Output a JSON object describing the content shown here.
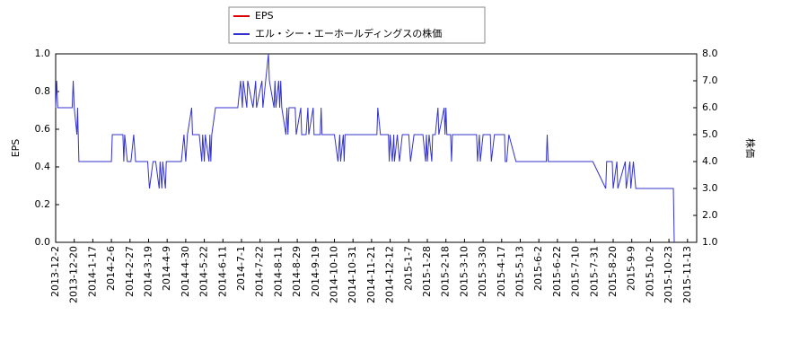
{
  "chart_data": {
    "type": "line",
    "ylabel": "EPS",
    "y2label": "株価",
    "ylim": [
      0,
      1
    ],
    "yticks": [
      {
        "value": 0,
        "label": "0.0"
      },
      0.2,
      0.4,
      0.6,
      0.8,
      {
        "value": 1,
        "label": "1.0"
      }
    ],
    "y2lim": [
      1,
      8
    ],
    "y2ticks": [
      {
        "value": 1,
        "label": "1.0"
      },
      {
        "value": 2,
        "label": "2.0"
      },
      {
        "value": 3,
        "label": "3.0"
      },
      {
        "value": 4,
        "label": "4.0"
      },
      {
        "value": 5,
        "label": "5.0"
      },
      {
        "value": 6,
        "label": "6.0"
      },
      {
        "value": 7,
        "label": "7.0"
      },
      {
        "value": 8,
        "label": "8.0"
      }
    ],
    "xticks": [
      "2013-12-2",
      "2013-12-20",
      "2014-1-17",
      "2014-2-6",
      "2014-2-27",
      "2014-3-19",
      "2014-4-9",
      "2014-4-30",
      "2014-5-22",
      "2014-6-11",
      "2014-7-1",
      "2014-7-22",
      "2014-8-11",
      "2014-8-29",
      "2014-9-19",
      "2014-10-10",
      "2014-10-31",
      "2014-11-21",
      "2014-12-12",
      "2015-1-7",
      "2015-1-28",
      "2015-2-18",
      "2015-3-10",
      "2015-3-30",
      "2015-4-17",
      "2015-5-13",
      "2015-6-2",
      "2015-6-22",
      "2015-7-10",
      "2015-7-31",
      "2015-8-20",
      "2015-9-9",
      "2015-10-2",
      "2015-10-23",
      "2015-11-13"
    ],
    "legend": "upper-center",
    "series": [
      {
        "name": "EPS",
        "color": "#dd0000",
        "x": [],
        "values": []
      },
      {
        "name": "エル・シー・エーホールディングスの株価",
        "color": "#3333cc",
        "axis": "y2",
        "x": [
          "2013-12-2",
          "2013-12-3",
          "2013-12-4",
          "2013-12-18",
          "2013-12-19",
          "2013-12-20",
          "2013-12-24",
          "2013-12-25",
          "2013-12-26",
          "2013-12-27",
          "2014-2-6",
          "2014-2-7",
          "2014-2-19",
          "2014-2-20",
          "2014-2-21",
          "2014-2-24",
          "2014-2-28",
          "2014-3-3",
          "2014-3-5",
          "2014-3-18",
          "2014-3-20",
          "2014-3-24",
          "2014-3-27",
          "2014-3-31",
          "2014-4-1",
          "2014-4-3",
          "2014-4-4",
          "2014-4-7",
          "2014-4-8",
          "2014-4-25",
          "2014-4-28",
          "2014-4-30",
          "2014-5-2",
          "2014-5-7",
          "2014-5-8",
          "2014-5-16",
          "2014-5-19",
          "2014-5-20",
          "2014-5-22",
          "2014-5-23",
          "2014-5-27",
          "2014-5-28",
          "2014-5-29",
          "2014-5-30",
          "2014-6-3",
          "2014-6-27",
          "2014-6-30",
          "2014-7-2",
          "2014-7-3",
          "2014-7-7",
          "2014-7-8",
          "2014-7-14",
          "2014-7-17",
          "2014-7-18",
          "2014-7-24",
          "2014-7-25",
          "2014-7-31",
          "2014-8-1",
          "2014-8-6",
          "2014-8-7",
          "2014-8-8",
          "2014-8-11",
          "2014-8-12",
          "2014-8-13",
          "2014-8-14",
          "2014-8-18",
          "2014-8-19",
          "2014-8-20",
          "2014-8-21",
          "2014-8-27",
          "2014-8-28",
          "2014-9-2",
          "2014-9-3",
          "2014-9-8",
          "2014-9-10",
          "2014-9-11",
          "2014-9-16",
          "2014-9-17",
          "2014-9-24",
          "2014-9-25",
          "2014-9-26",
          "2014-10-10",
          "2014-10-14",
          "2014-10-16",
          "2014-10-17",
          "2014-10-20",
          "2014-10-21",
          "2014-10-22",
          "2014-11-27",
          "2014-11-28",
          "2014-12-1",
          "2014-12-10",
          "2014-12-11",
          "2014-12-12",
          "2014-12-15",
          "2014-12-17",
          "2014-12-18",
          "2014-12-22",
          "2014-12-25",
          "2014-12-29",
          "2015-1-7",
          "2015-1-9",
          "2015-1-13",
          "2015-1-23",
          "2015-1-26",
          "2015-1-27",
          "2015-1-28",
          "2015-1-30",
          "2015-2-2",
          "2015-2-3",
          "2015-2-6",
          "2015-2-9",
          "2015-2-10",
          "2015-2-16",
          "2015-2-17",
          "2015-2-18",
          "2015-2-19",
          "2015-2-23",
          "2015-2-24",
          "2015-2-25",
          "2015-3-23",
          "2015-3-24",
          "2015-3-26",
          "2015-3-27",
          "2015-3-30",
          "2015-4-6",
          "2015-4-7",
          "2015-4-10",
          "2015-4-21",
          "2015-4-22",
          "2015-4-24",
          "2015-4-27",
          "2015-5-7",
          "2015-6-10",
          "2015-6-11",
          "2015-6-12",
          "2015-7-29",
          "2015-8-12",
          "2015-8-13",
          "2015-8-19",
          "2015-8-20",
          "2015-8-24",
          "2015-8-25",
          "2015-9-2",
          "2015-9-3",
          "2015-9-7",
          "2015-9-8",
          "2015-9-11",
          "2015-9-14",
          "2015-10-28",
          "2015-10-29"
        ],
        "values": [
          6,
          7,
          6,
          6,
          7,
          6,
          5,
          6,
          5,
          4,
          4,
          5,
          5,
          4,
          5,
          4,
          4,
          5,
          4,
          4,
          3,
          4,
          4,
          3,
          4,
          3,
          4,
          3,
          4,
          4,
          5,
          4,
          5,
          6,
          5,
          5,
          4,
          5,
          4,
          5,
          4,
          5,
          4,
          5,
          6,
          6,
          7,
          6,
          7,
          6,
          7,
          6,
          7,
          6,
          7,
          6,
          8,
          7,
          6,
          7,
          6,
          7,
          6,
          7,
          6,
          5,
          6,
          5,
          6,
          6,
          5,
          6,
          5,
          5,
          6,
          5,
          6,
          5,
          5,
          6,
          5,
          5,
          4,
          5,
          4,
          5,
          4,
          5,
          5,
          6,
          5,
          5,
          4,
          5,
          4,
          5,
          4,
          5,
          4,
          5,
          5,
          4,
          5,
          5,
          4,
          5,
          4,
          5,
          4,
          5,
          5,
          6,
          5,
          6,
          5,
          6,
          5,
          5,
          4,
          5,
          5,
          4,
          5,
          4,
          5,
          5,
          4,
          5,
          5,
          4,
          4,
          5,
          4,
          4,
          5,
          4,
          4,
          3,
          4,
          4,
          3,
          4,
          3,
          4,
          3,
          4,
          3,
          4,
          3,
          3,
          1
        ]
      }
    ]
  }
}
